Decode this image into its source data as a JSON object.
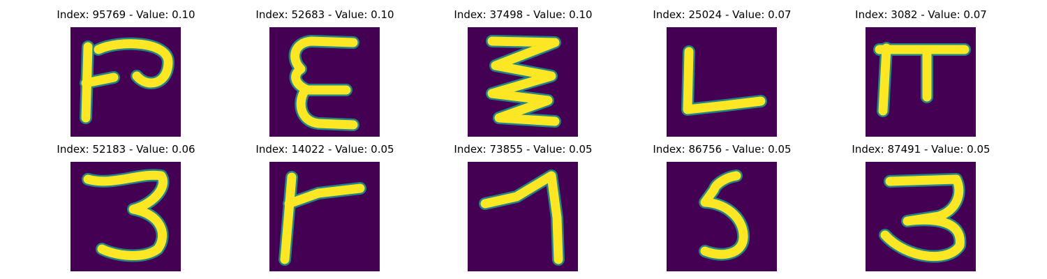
{
  "panels": [
    {
      "title": "Index: 95769 - Value: 0.10",
      "glyph": "p-glyph-icon"
    },
    {
      "title": "Index: 52683 - Value: 0.10",
      "glyph": "e-glyph-icon"
    },
    {
      "title": "Index: 37498 - Value: 0.10",
      "glyph": "zigzag-glyph-icon"
    },
    {
      "title": "Index: 25024 - Value: 0.07",
      "glyph": "l-glyph-icon"
    },
    {
      "title": "Index: 3082 - Value: 0.07",
      "glyph": "pi-glyph-icon"
    },
    {
      "title": "Index: 52183 - Value: 0.06",
      "glyph": "three-glyph-icon"
    },
    {
      "title": "Index: 14022 - Value: 0.05",
      "glyph": "flag-glyph-icon"
    },
    {
      "title": "Index: 73855 - Value: 0.05",
      "glyph": "seven-glyph-icon"
    },
    {
      "title": "Index: 86756 - Value: 0.05",
      "glyph": "five-glyph-icon"
    },
    {
      "title": "Index: 87491 - Value: 0.05",
      "glyph": "three-glyph-icon"
    }
  ],
  "colors": {
    "background": "#440154",
    "stroke": "#fde725",
    "edge": "#21918c"
  }
}
